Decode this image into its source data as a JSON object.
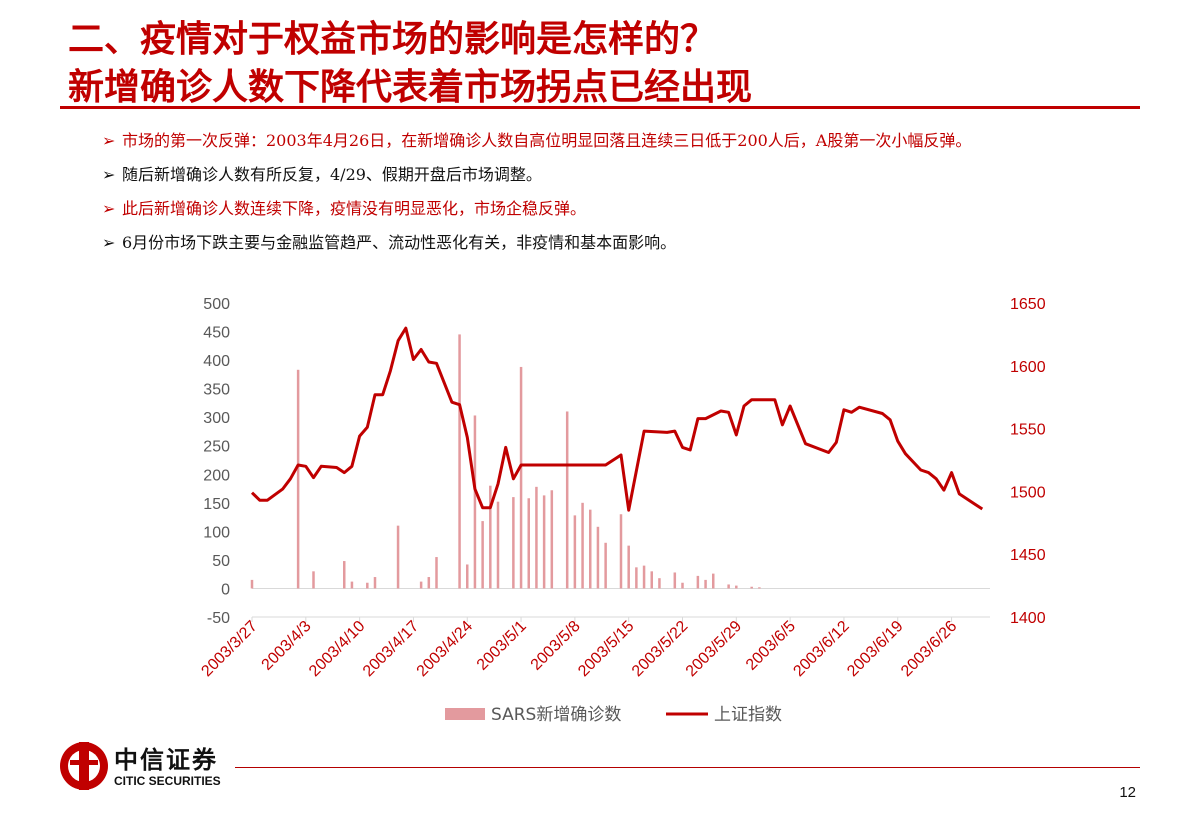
{
  "slide": {
    "title_line1": "二、疫情对于权益市场的影响是怎样的？",
    "title_line2": "新增确诊人数下降代表着市场拐点已经出现",
    "page_number": "12"
  },
  "bullets": [
    {
      "marker": "➢",
      "text": "市场的第一次反弹：2003年4月26日，在新增确诊人数自高位明显回落且连续三日低于200人后，A股第一次小幅反弹。",
      "color": "#c00000"
    },
    {
      "marker": "➢",
      "text": "随后新增确诊人数有所反复，4/29、假期开盘后市场调整。",
      "color": "#111111"
    },
    {
      "marker": "➢",
      "text": "此后新增确诊人数连续下降，疫情没有明显恶化，市场企稳反弹。",
      "color": "#c00000"
    },
    {
      "marker": "➢",
      "text": "6月份市场下跌主要与金融监管趋严、流动性恶化有关，非疫情和基本面影响。",
      "color": "#111111"
    }
  ],
  "logo": {
    "cn": "中信证券",
    "en": "CITIC SECURITIES"
  },
  "chart_data": {
    "type": "bar+line",
    "x_ticks": [
      "2003/3/27",
      "2003/4/3",
      "2003/4/10",
      "2003/4/17",
      "2003/4/24",
      "2003/5/1",
      "2003/5/8",
      "2003/5/15",
      "2003/5/22",
      "2003/5/29",
      "2003/6/5",
      "2003/6/12",
      "2003/6/19",
      "2003/6/26"
    ],
    "x_range": [
      "2003/3/27",
      "2003/7/1"
    ],
    "left_axis": {
      "ylim": [
        -50,
        500
      ],
      "ticks": [
        -50,
        0,
        50,
        100,
        150,
        200,
        250,
        300,
        350,
        400,
        450,
        500
      ]
    },
    "right_axis": {
      "ylim": [
        1400,
        1650
      ],
      "ticks": [
        1400,
        1450,
        1500,
        1550,
        1600,
        1650
      ]
    },
    "legend": {
      "position": "bottom-center"
    },
    "bar_series": {
      "name": "SARS新增确诊数",
      "axis": "left",
      "color": "#e39a9e",
      "points": [
        [
          "2003/3/27",
          15
        ],
        [
          "2003/4/2",
          383
        ],
        [
          "2003/4/4",
          30
        ],
        [
          "2003/4/8",
          48
        ],
        [
          "2003/4/9",
          12
        ],
        [
          "2003/4/11",
          10
        ],
        [
          "2003/4/12",
          20
        ],
        [
          "2003/4/15",
          110
        ],
        [
          "2003/4/18",
          12
        ],
        [
          "2003/4/19",
          20
        ],
        [
          "2003/4/20",
          55
        ],
        [
          "2003/4/23",
          445
        ],
        [
          "2003/4/24",
          42
        ],
        [
          "2003/4/25",
          303
        ],
        [
          "2003/4/26",
          118
        ],
        [
          "2003/4/27",
          180
        ],
        [
          "2003/4/28",
          152
        ],
        [
          "2003/4/30",
          160
        ],
        [
          "2003/5/1",
          388
        ],
        [
          "2003/5/2",
          158
        ],
        [
          "2003/5/3",
          178
        ],
        [
          "2003/5/4",
          163
        ],
        [
          "2003/5/5",
          172
        ],
        [
          "2003/5/7",
          310
        ],
        [
          "2003/5/8",
          128
        ],
        [
          "2003/5/9",
          150
        ],
        [
          "2003/5/10",
          138
        ],
        [
          "2003/5/11",
          108
        ],
        [
          "2003/5/12",
          80
        ],
        [
          "2003/5/14",
          130
        ],
        [
          "2003/5/15",
          75
        ],
        [
          "2003/5/16",
          37
        ],
        [
          "2003/5/17",
          40
        ],
        [
          "2003/5/18",
          30
        ],
        [
          "2003/5/19",
          18
        ],
        [
          "2003/5/21",
          28
        ],
        [
          "2003/5/22",
          10
        ],
        [
          "2003/5/24",
          22
        ],
        [
          "2003/5/25",
          15
        ],
        [
          "2003/5/26",
          26
        ],
        [
          "2003/5/28",
          7
        ],
        [
          "2003/5/29",
          5
        ],
        [
          "2003/5/31",
          3
        ],
        [
          "2003/6/1",
          2
        ]
      ]
    },
    "line_series": {
      "name": "上证指数",
      "axis": "right",
      "color": "#c00000",
      "points": [
        [
          "2003/3/27",
          1499
        ],
        [
          "2003/3/28",
          1493
        ],
        [
          "2003/3/29",
          1493
        ],
        [
          "2003/3/31",
          1502
        ],
        [
          "2003/4/1",
          1510
        ],
        [
          "2003/4/2",
          1521
        ],
        [
          "2003/4/3",
          1520
        ],
        [
          "2003/4/4",
          1511
        ],
        [
          "2003/4/5",
          1520
        ],
        [
          "2003/4/7",
          1519
        ],
        [
          "2003/4/8",
          1515
        ],
        [
          "2003/4/9",
          1520
        ],
        [
          "2003/4/10",
          1544
        ],
        [
          "2003/4/11",
          1551
        ],
        [
          "2003/4/12",
          1577
        ],
        [
          "2003/4/13",
          1577
        ],
        [
          "2003/4/14",
          1596
        ],
        [
          "2003/4/15",
          1620
        ],
        [
          "2003/4/16",
          1630
        ],
        [
          "2003/4/17",
          1605
        ],
        [
          "2003/4/18",
          1613
        ],
        [
          "2003/4/19",
          1603
        ],
        [
          "2003/4/20",
          1602
        ],
        [
          "2003/4/22",
          1571
        ],
        [
          "2003/4/23",
          1569
        ],
        [
          "2003/4/24",
          1543
        ],
        [
          "2003/4/25",
          1502
        ],
        [
          "2003/4/26",
          1487
        ],
        [
          "2003/4/27",
          1487
        ],
        [
          "2003/4/28",
          1506
        ],
        [
          "2003/4/29",
          1535
        ],
        [
          "2003/4/30",
          1510
        ],
        [
          "2003/5/1",
          1521
        ],
        [
          "2003/5/6",
          1521
        ],
        [
          "2003/5/10",
          1521
        ],
        [
          "2003/5/12",
          1521
        ],
        [
          "2003/5/14",
          1529
        ],
        [
          "2003/5/15",
          1485
        ],
        [
          "2003/5/17",
          1548
        ],
        [
          "2003/5/20",
          1547
        ],
        [
          "2003/5/21",
          1548
        ],
        [
          "2003/5/22",
          1535
        ],
        [
          "2003/5/23",
          1533
        ],
        [
          "2003/5/24",
          1558
        ],
        [
          "2003/5/25",
          1558
        ],
        [
          "2003/5/27",
          1564
        ],
        [
          "2003/5/28",
          1563
        ],
        [
          "2003/5/29",
          1545
        ],
        [
          "2003/5/30",
          1568
        ],
        [
          "2003/5/31",
          1573
        ],
        [
          "2003/6/3",
          1573
        ],
        [
          "2003/6/4",
          1553
        ],
        [
          "2003/6/5",
          1568
        ],
        [
          "2003/6/7",
          1538
        ],
        [
          "2003/6/10",
          1531
        ],
        [
          "2003/6/11",
          1539
        ],
        [
          "2003/6/12",
          1565
        ],
        [
          "2003/6/13",
          1563
        ],
        [
          "2003/6/14",
          1567
        ],
        [
          "2003/6/17",
          1562
        ],
        [
          "2003/6/18",
          1557
        ],
        [
          "2003/6/19",
          1540
        ],
        [
          "2003/6/20",
          1530
        ],
        [
          "2003/6/22",
          1517
        ],
        [
          "2003/6/23",
          1515
        ],
        [
          "2003/6/24",
          1510
        ],
        [
          "2003/6/25",
          1501
        ],
        [
          "2003/6/26",
          1515
        ],
        [
          "2003/6/27",
          1498
        ],
        [
          "2003/6/29",
          1490
        ],
        [
          "2003/6/30",
          1486
        ]
      ]
    }
  }
}
